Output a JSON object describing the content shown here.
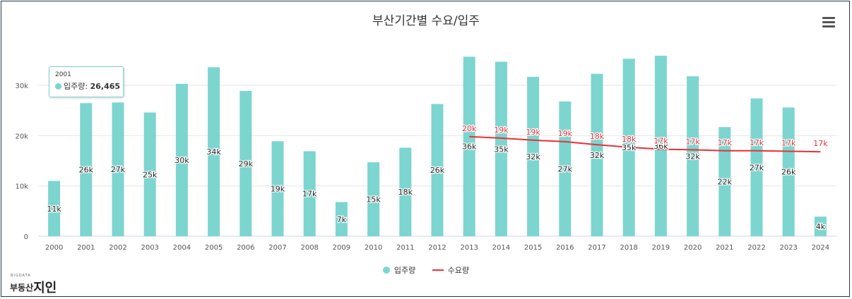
{
  "chart_data": {
    "type": "bar",
    "title": "부산기간별 수요/입주",
    "categories": [
      "2000",
      "2001",
      "2002",
      "2003",
      "2004",
      "2005",
      "2006",
      "2007",
      "2008",
      "2009",
      "2010",
      "2011",
      "2012",
      "2013",
      "2014",
      "2015",
      "2016",
      "2017",
      "2018",
      "2019",
      "2020",
      "2021",
      "2022",
      "2023",
      "2024"
    ],
    "series": [
      {
        "name": "입주량",
        "type": "bar",
        "color": "#7dd5cf",
        "values": [
          11000,
          26465,
          26600,
          24600,
          30300,
          33600,
          28900,
          18900,
          16900,
          6800,
          14700,
          17600,
          26300,
          35700,
          34700,
          31700,
          26800,
          32300,
          35300,
          35900,
          31800,
          21700,
          27400,
          25600,
          3900
        ],
        "labels": [
          "11k",
          "26k",
          "27k",
          "25k",
          "30k",
          "34k",
          "29k",
          "19k",
          "17k",
          "7k",
          "15k",
          "18k",
          "26k",
          "36k",
          "35k",
          "32k",
          "27k",
          "32k",
          "35k",
          "36k",
          "32k",
          "22k",
          "27k",
          "26k",
          "4k"
        ]
      },
      {
        "name": "수요량",
        "type": "line",
        "color": "#e8303a",
        "values": [
          null,
          null,
          null,
          null,
          null,
          null,
          null,
          null,
          null,
          null,
          null,
          null,
          null,
          19800,
          19500,
          19100,
          18800,
          18200,
          17700,
          17300,
          17200,
          17000,
          17000,
          16900,
          16800
        ],
        "labels": [
          "",
          "",
          "",
          "",
          "",
          "",
          "",
          "",
          "",
          "",
          "",
          "",
          "",
          "20k",
          "19k",
          "19k",
          "19k",
          "18k",
          "18k",
          "17k",
          "17k",
          "17k",
          "17k",
          "17k",
          "17k"
        ]
      }
    ],
    "y_ticks": [
      0,
      10000,
      20000,
      30000
    ],
    "y_tick_labels": [
      "0",
      "10k",
      "20k",
      "30k"
    ],
    "ylim": [
      0,
      38000
    ],
    "grid": true,
    "legend": "bottom-center"
  },
  "tooltip": {
    "x": "2001",
    "series_name": "입주량",
    "value": "26,465"
  },
  "legend": {
    "items": [
      {
        "label": "입주량",
        "icon": "dot"
      },
      {
        "label": "수요량",
        "icon": "line"
      }
    ]
  },
  "logo": {
    "small_text": "BIGDATA",
    "main_text": "부동산",
    "big_text": "지인"
  }
}
